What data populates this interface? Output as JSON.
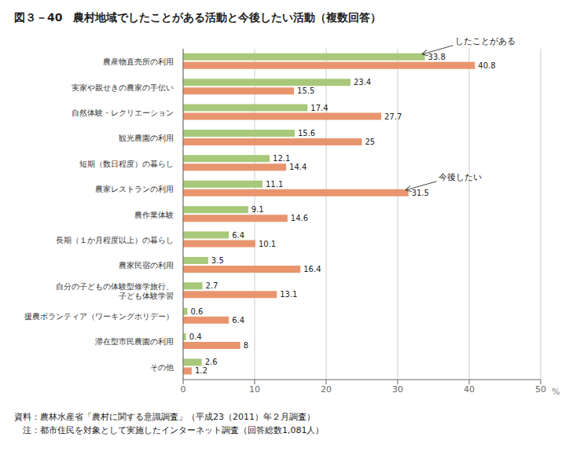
{
  "chart_data": {
    "type": "bar",
    "orientation": "horizontal",
    "title": "図３－40　農村地域でしたことがある活動と今後したい活動（複数回答）",
    "categories": [
      "農産物直売所の利用",
      "実家や親せきの農家の手伝い",
      "自然体験・レクリエーション",
      "観光農園の利用",
      "短期（数日程度）の暮らし",
      "農家レストランの利用",
      "農作業体験",
      "長期（１か月程度以上）の暮らし",
      "農家民宿の利用",
      "自分の子どもの体験型修学旅行、\n子ども体験学習",
      "援農ボランティア（ワーキングホリデー）",
      "滞在型市民農園の利用",
      "その他"
    ],
    "series": [
      {
        "name": "したことがある",
        "color": "#a8c87a",
        "values": [
          33.8,
          23.4,
          17.4,
          15.6,
          12.1,
          11.1,
          9.1,
          6.4,
          3.5,
          2.7,
          0.6,
          0.4,
          2.6
        ]
      },
      {
        "name": "今後したい",
        "color": "#e8956e",
        "values": [
          40.8,
          15.5,
          27.7,
          25.0,
          14.4,
          31.5,
          14.6,
          10.1,
          16.4,
          13.1,
          6.4,
          8.0,
          1.2
        ]
      }
    ],
    "xlim": [
      0,
      50
    ],
    "xticks": [
      0,
      10,
      20,
      30,
      40,
      50
    ],
    "x_label": "%",
    "grid": true,
    "data_labels": true,
    "footer": [
      "資料：農林水産省「農村に関する意識調査」（平成23（2011）年２月調査）",
      "　注：都市住民を対象として実施したインターネット調査（回答総数1,081人）"
    ]
  }
}
